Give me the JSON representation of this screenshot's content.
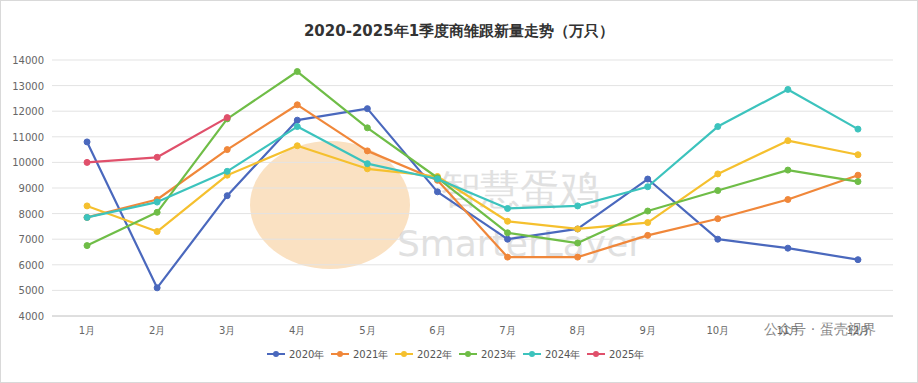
{
  "chart_data": {
    "type": "line",
    "title": "2020-2025年1季度商雏跟新量走势（万只）",
    "categories": [
      "1月",
      "2月",
      "3月",
      "4月",
      "5月",
      "6月",
      "7月",
      "8月",
      "9月",
      "10月",
      "11月",
      "12月"
    ],
    "series": [
      {
        "name": "2020年",
        "color": "#4a68bd",
        "values": [
          10800,
          5100,
          8700,
          11650,
          12100,
          8850,
          7000,
          7400,
          9350,
          7000,
          6650,
          6200
        ]
      },
      {
        "name": "2021年",
        "color": "#f0873a",
        "values": [
          7850,
          8550,
          10500,
          12250,
          10450,
          9300,
          6300,
          6300,
          7150,
          7800,
          8550,
          9500
        ]
      },
      {
        "name": "2022年",
        "color": "#f5c02e",
        "values": [
          8300,
          7300,
          9500,
          10650,
          9750,
          9450,
          7700,
          7400,
          7650,
          9550,
          10850,
          10300
        ]
      },
      {
        "name": "2023年",
        "color": "#6fbd47",
        "values": [
          6750,
          8050,
          11700,
          13550,
          11350,
          9400,
          7250,
          6850,
          8100,
          8900,
          9700,
          9250
        ]
      },
      {
        "name": "2024年",
        "color": "#3cc3bd",
        "values": [
          7850,
          8450,
          9650,
          11400,
          9950,
          9350,
          8200,
          8300,
          9050,
          11400,
          12850,
          11300
        ]
      },
      {
        "name": "2025年",
        "color": "#e0506b",
        "values": [
          10000,
          10200,
          11750,
          null,
          null,
          null,
          null,
          null,
          null,
          null,
          null,
          null
        ]
      }
    ],
    "ylim": [
      4000,
      14000
    ],
    "yticks": [
      4000,
      5000,
      6000,
      7000,
      8000,
      9000,
      10000,
      11000,
      12000,
      13000,
      14000
    ],
    "grid": true,
    "legend": "bottom",
    "marker": "circle",
    "annotations": [
      "智慧蛋鸡",
      "SmarterLayer",
      "公众号 · 蛋壳视界"
    ]
  }
}
